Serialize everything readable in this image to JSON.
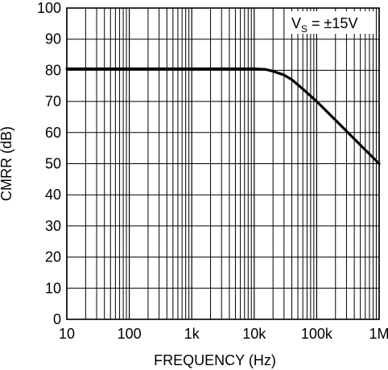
{
  "chart_data": {
    "type": "line",
    "title": "",
    "xlabel": "FREQUENCY (Hz)",
    "ylabel": "CMRR (dB)",
    "xscale": "log",
    "xlim": [
      10,
      1000000
    ],
    "ylim": [
      0,
      100
    ],
    "grid": true,
    "x_ticks": [
      10,
      100,
      1000,
      10000,
      100000,
      1000000
    ],
    "x_tick_labels": [
      "10",
      "100",
      "1k",
      "10k",
      "100k",
      "1M"
    ],
    "y_ticks": [
      0,
      10,
      20,
      30,
      40,
      50,
      60,
      70,
      80,
      90,
      100
    ],
    "y_tick_labels": [
      "0",
      "10",
      "20",
      "30",
      "40",
      "50",
      "60",
      "70",
      "80",
      "90",
      "100"
    ],
    "series": [
      {
        "x": [
          10,
          100,
          1000,
          10000,
          15000,
          20000,
          30000,
          40000,
          60000,
          100000,
          200000,
          500000,
          1000000
        ],
        "y": [
          80.5,
          80.5,
          80.5,
          80.5,
          80.3,
          79.7,
          78.5,
          77,
          74,
          70,
          64,
          56,
          50
        ]
      }
    ],
    "annotation": {
      "main": "V",
      "sub": "S",
      "rest": " = ±15V",
      "position": "top-right"
    },
    "colors": {
      "line": "#000000",
      "grid": "#000000",
      "background": "#ffffff"
    }
  }
}
